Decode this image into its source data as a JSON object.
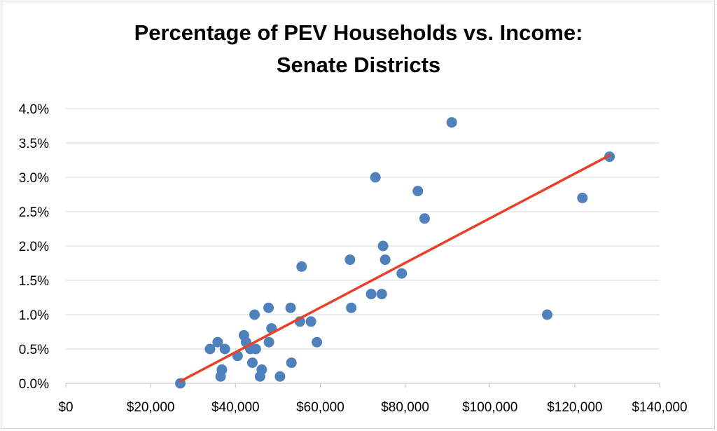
{
  "chart_data": {
    "type": "scatter",
    "title_line1": "Percentage of PEV Households vs. Income:",
    "title_line2": "Senate Districts",
    "xlabel": "",
    "ylabel": "",
    "xlim": [
      0,
      140000
    ],
    "ylim": [
      0,
      0.04
    ],
    "x_ticks": [
      0,
      20000,
      40000,
      60000,
      80000,
      100000,
      120000,
      140000
    ],
    "x_tick_labels": [
      "$0",
      "$20,000",
      "$40,000",
      "$60,000",
      "$80,000",
      "$100,000",
      "$120,000",
      "$140,000"
    ],
    "y_ticks": [
      0,
      0.005,
      0.01,
      0.015,
      0.02,
      0.025,
      0.03,
      0.035,
      0.04
    ],
    "y_tick_labels": [
      "0.0%",
      "0.5%",
      "1.0%",
      "1.5%",
      "2.0%",
      "2.5%",
      "3.0%",
      "3.5%",
      "4.0%"
    ],
    "grid": "horizontal",
    "marker_color": "#4f81bd",
    "trendline_color": "#e8402a",
    "points": [
      {
        "x": 27000,
        "y": 0.0
      },
      {
        "x": 34000,
        "y": 0.005
      },
      {
        "x": 35800,
        "y": 0.006
      },
      {
        "x": 36500,
        "y": 0.001
      },
      {
        "x": 36800,
        "y": 0.002
      },
      {
        "x": 37500,
        "y": 0.005
      },
      {
        "x": 40500,
        "y": 0.004
      },
      {
        "x": 42000,
        "y": 0.007
      },
      {
        "x": 42500,
        "y": 0.006
      },
      {
        "x": 43500,
        "y": 0.005
      },
      {
        "x": 44000,
        "y": 0.003
      },
      {
        "x": 44500,
        "y": 0.01
      },
      {
        "x": 44800,
        "y": 0.005
      },
      {
        "x": 45800,
        "y": 0.001
      },
      {
        "x": 46200,
        "y": 0.002
      },
      {
        "x": 47800,
        "y": 0.011
      },
      {
        "x": 47900,
        "y": 0.006
      },
      {
        "x": 48500,
        "y": 0.008
      },
      {
        "x": 50500,
        "y": 0.001
      },
      {
        "x": 53000,
        "y": 0.011
      },
      {
        "x": 53200,
        "y": 0.003
      },
      {
        "x": 55200,
        "y": 0.009
      },
      {
        "x": 55600,
        "y": 0.017
      },
      {
        "x": 57800,
        "y": 0.009
      },
      {
        "x": 59200,
        "y": 0.006
      },
      {
        "x": 67000,
        "y": 0.018
      },
      {
        "x": 67300,
        "y": 0.011
      },
      {
        "x": 72000,
        "y": 0.013
      },
      {
        "x": 73000,
        "y": 0.03
      },
      {
        "x": 74500,
        "y": 0.013
      },
      {
        "x": 74800,
        "y": 0.02
      },
      {
        "x": 75300,
        "y": 0.018
      },
      {
        "x": 79200,
        "y": 0.016
      },
      {
        "x": 83000,
        "y": 0.028
      },
      {
        "x": 84600,
        "y": 0.024
      },
      {
        "x": 91000,
        "y": 0.038
      },
      {
        "x": 113500,
        "y": 0.01
      },
      {
        "x": 121800,
        "y": 0.027
      },
      {
        "x": 128200,
        "y": 0.033
      }
    ],
    "trendline": {
      "x1": 27000,
      "y1": 0.0003,
      "x2": 128200,
      "y2": 0.0332
    }
  }
}
